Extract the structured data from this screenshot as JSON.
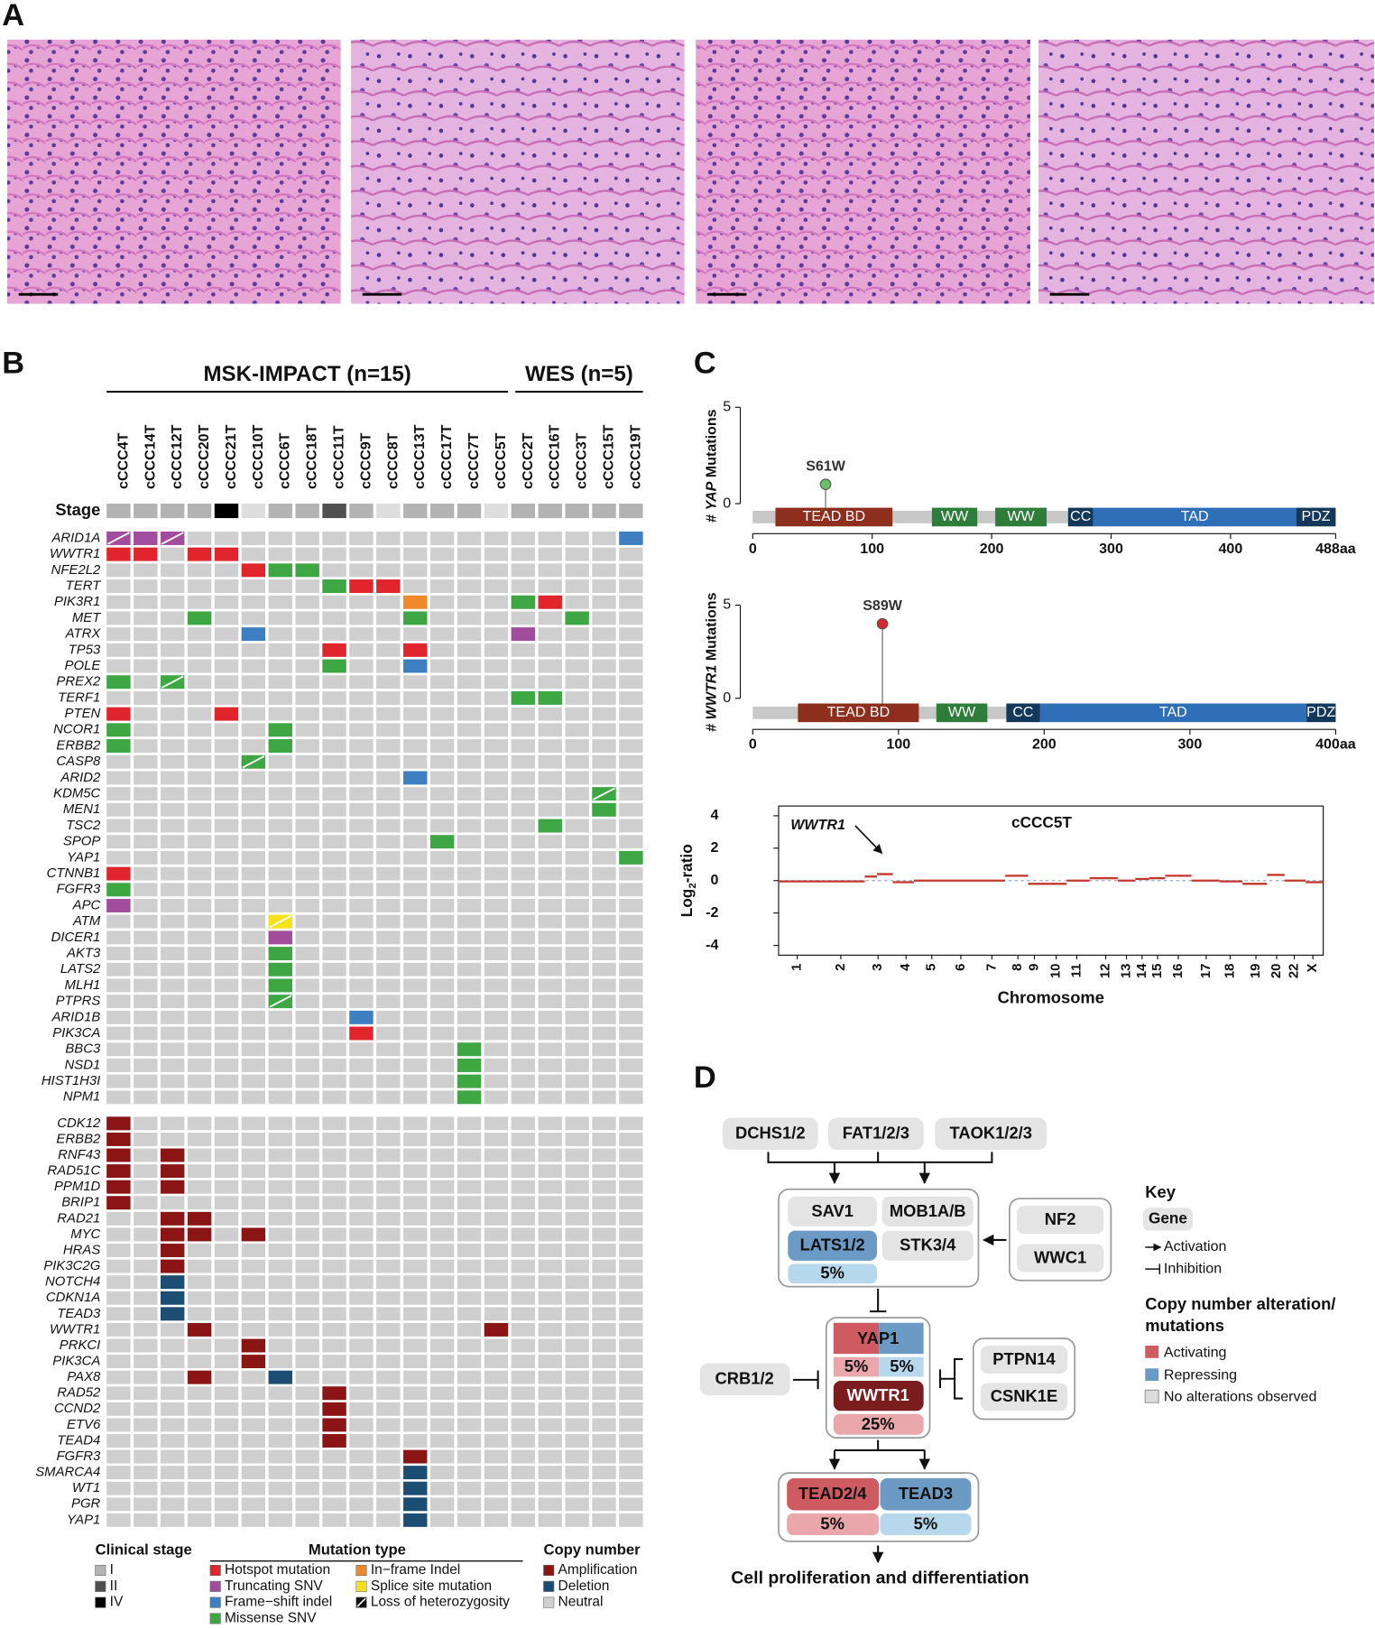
{
  "panel_a": {
    "label": "A"
  },
  "panel_b": {
    "label": "B",
    "groups": [
      "MSK-IMPACT (n=15)",
      "WES (n=5)"
    ],
    "samples": [
      "cCCC4T",
      "cCCC14T",
      "cCCC12T",
      "cCCC20T",
      "cCCC21T",
      "cCCC10T",
      "cCCC6T",
      "cCCC18T",
      "cCCC11T",
      "cCCC9T",
      "cCCC8T",
      "cCCC13T",
      "cCCC17T",
      "cCCC7T",
      "cCCC5T",
      "cCCC2T",
      "cCCC16T",
      "cCCC3T",
      "cCCC15T",
      "cCCC19T"
    ],
    "stage_label": "Stage",
    "stages": [
      "I",
      "I",
      "I",
      "I",
      "IV",
      null,
      "I",
      "I",
      "II",
      "I",
      null,
      "I",
      "I",
      "I",
      null,
      "I",
      "I",
      "I",
      "I",
      "I"
    ],
    "stage_legend": {
      "title": "Clinical stage",
      "items": [
        {
          "label": "I",
          "color": "#b3b3b3"
        },
        {
          "label": "II",
          "color": "#505050"
        },
        {
          "label": "IV",
          "color": "#000000"
        }
      ]
    },
    "mutation_legend": {
      "title": "Mutation type",
      "items": [
        {
          "label": "Hotspot mutation",
          "color": "#e0262c"
        },
        {
          "label": "Truncating SNV",
          "color": "#a24c9e"
        },
        {
          "label": "Frame−shift indel",
          "color": "#3d7fc1"
        },
        {
          "label": "Missense SNV",
          "color": "#3ea743"
        },
        {
          "label": "In−frame Indel",
          "color": "#f0892a"
        },
        {
          "label": "Splice site mutation",
          "color": "#f3e21c"
        },
        {
          "label": "Loss of heterozygosity",
          "color": "#111111",
          "style": "diagonal"
        }
      ]
    },
    "copy_number_legend": {
      "title": "Copy number",
      "items": [
        {
          "label": "Amplification",
          "color": "#8b1515"
        },
        {
          "label": "Deletion",
          "color": "#1c4e74"
        },
        {
          "label": "Neutral",
          "color": "#cfcfcf"
        }
      ]
    },
    "mutations": [
      {
        "gene": "ARID1A",
        "hits": {
          "cCCC4T": [
            "Truncating SNV",
            "Loss of heterozygosity"
          ],
          "cCCC14T": [
            "Truncating SNV"
          ],
          "cCCC12T": [
            "Truncating SNV",
            "Loss of heterozygosity"
          ],
          "cCCC19T": [
            "Frame−shift indel"
          ]
        }
      },
      {
        "gene": "WWTR1",
        "hits": {
          "cCCC4T": [
            "Hotspot mutation"
          ],
          "cCCC14T": [
            "Hotspot mutation"
          ],
          "cCCC20T": [
            "Hotspot mutation"
          ],
          "cCCC21T": [
            "Hotspot mutation"
          ]
        }
      },
      {
        "gene": "NFE2L2",
        "hits": {
          "cCCC10T": [
            "Hotspot mutation"
          ],
          "cCCC6T": [
            "Missense SNV"
          ],
          "cCCC18T": [
            "Missense SNV"
          ]
        }
      },
      {
        "gene": "TERT",
        "hits": {
          "cCCC11T": [
            "Missense SNV"
          ],
          "cCCC9T": [
            "Hotspot mutation"
          ],
          "cCCC8T": [
            "Hotspot mutation"
          ]
        }
      },
      {
        "gene": "PIK3R1",
        "hits": {
          "cCCC13T": [
            "In−frame Indel"
          ],
          "cCCC2T": [
            "Missense SNV"
          ],
          "cCCC16T": [
            "Hotspot mutation"
          ]
        }
      },
      {
        "gene": "MET",
        "hits": {
          "cCCC20T": [
            "Missense SNV"
          ],
          "cCCC13T": [
            "Missense SNV"
          ],
          "cCCC3T": [
            "Missense SNV"
          ]
        }
      },
      {
        "gene": "ATRX",
        "hits": {
          "cCCC10T": [
            "Frame−shift indel"
          ],
          "cCCC2T": [
            "Truncating SNV"
          ]
        }
      },
      {
        "gene": "TP53",
        "hits": {
          "cCCC11T": [
            "Hotspot mutation"
          ],
          "cCCC13T": [
            "Hotspot mutation"
          ]
        }
      },
      {
        "gene": "POLE",
        "hits": {
          "cCCC11T": [
            "Missense SNV"
          ],
          "cCCC13T": [
            "Frame−shift indel"
          ]
        }
      },
      {
        "gene": "PREX2",
        "hits": {
          "cCCC4T": [
            "Missense SNV"
          ],
          "cCCC12T": [
            "Missense SNV",
            "Loss of heterozygosity"
          ]
        }
      },
      {
        "gene": "TERF1",
        "hits": {
          "cCCC2T": [
            "Missense SNV"
          ],
          "cCCC16T": [
            "Missense SNV"
          ]
        }
      },
      {
        "gene": "PTEN",
        "hits": {
          "cCCC4T": [
            "Hotspot mutation"
          ],
          "cCCC21T": [
            "Hotspot mutation"
          ]
        }
      },
      {
        "gene": "NCOR1",
        "hits": {
          "cCCC4T": [
            "Missense SNV"
          ],
          "cCCC6T": [
            "Missense SNV"
          ]
        }
      },
      {
        "gene": "ERBB2",
        "hits": {
          "cCCC4T": [
            "Missense SNV"
          ],
          "cCCC6T": [
            "Missense SNV"
          ]
        }
      },
      {
        "gene": "CASP8",
        "hits": {
          "cCCC10T": [
            "Missense SNV",
            "Loss of heterozygosity"
          ]
        }
      },
      {
        "gene": "ARID2",
        "hits": {
          "cCCC13T": [
            "Frame−shift indel"
          ]
        }
      },
      {
        "gene": "KDM5C",
        "hits": {
          "cCCC15T": [
            "Missense SNV",
            "Loss of heterozygosity"
          ]
        }
      },
      {
        "gene": "MEN1",
        "hits": {
          "cCCC15T": [
            "Missense SNV"
          ]
        }
      },
      {
        "gene": "TSC2",
        "hits": {
          "cCCC16T": [
            "Missense SNV"
          ]
        }
      },
      {
        "gene": "SPOP",
        "hits": {
          "cCCC17T": [
            "Missense SNV"
          ]
        }
      },
      {
        "gene": "YAP1",
        "hits": {
          "cCCC19T": [
            "Missense SNV"
          ]
        }
      },
      {
        "gene": "CTNNB1",
        "hits": {
          "cCCC4T": [
            "Hotspot mutation"
          ]
        }
      },
      {
        "gene": "FGFR3",
        "hits": {
          "cCCC4T": [
            "Missense SNV"
          ]
        }
      },
      {
        "gene": "APC",
        "hits": {
          "cCCC4T": [
            "Truncating SNV"
          ]
        }
      },
      {
        "gene": "ATM",
        "hits": {
          "cCCC6T": [
            "Splice site mutation",
            "Loss of heterozygosity"
          ]
        }
      },
      {
        "gene": "DICER1",
        "hits": {
          "cCCC6T": [
            "Truncating SNV"
          ]
        }
      },
      {
        "gene": "AKT3",
        "hits": {
          "cCCC6T": [
            "Missense SNV"
          ]
        }
      },
      {
        "gene": "LATS2",
        "hits": {
          "cCCC6T": [
            "Missense SNV"
          ]
        }
      },
      {
        "gene": "MLH1",
        "hits": {
          "cCCC6T": [
            "Missense SNV"
          ]
        }
      },
      {
        "gene": "PTPRS",
        "hits": {
          "cCCC6T": [
            "Missense SNV",
            "Loss of heterozygosity"
          ]
        }
      },
      {
        "gene": "ARID1B",
        "hits": {
          "cCCC9T": [
            "Frame−shift indel"
          ]
        }
      },
      {
        "gene": "PIK3CA",
        "hits": {
          "cCCC9T": [
            "Hotspot mutation"
          ]
        }
      },
      {
        "gene": "BBC3",
        "hits": {
          "cCCC7T": [
            "Missense SNV"
          ]
        }
      },
      {
        "gene": "NSD1",
        "hits": {
          "cCCC7T": [
            "Missense SNV"
          ]
        }
      },
      {
        "gene": "HIST1H3I",
        "hits": {
          "cCCC7T": [
            "Missense SNV"
          ]
        }
      },
      {
        "gene": "NPM1",
        "hits": {
          "cCCC7T": [
            "Missense SNV"
          ]
        }
      }
    ],
    "copy_number": [
      {
        "gene": "CDK12",
        "hits": {
          "cCCC4T": "Amplification"
        }
      },
      {
        "gene": "ERBB2",
        "hits": {
          "cCCC4T": "Amplification"
        }
      },
      {
        "gene": "RNF43",
        "hits": {
          "cCCC4T": "Amplification",
          "cCCC12T": "Amplification"
        }
      },
      {
        "gene": "RAD51C",
        "hits": {
          "cCCC4T": "Amplification",
          "cCCC12T": "Amplification"
        }
      },
      {
        "gene": "PPM1D",
        "hits": {
          "cCCC4T": "Amplification",
          "cCCC12T": "Amplification"
        }
      },
      {
        "gene": "BRIP1",
        "hits": {
          "cCCC4T": "Amplification"
        }
      },
      {
        "gene": "RAD21",
        "hits": {
          "cCCC12T": "Amplification",
          "cCCC20T": "Amplification"
        }
      },
      {
        "gene": "MYC",
        "hits": {
          "cCCC12T": "Amplification",
          "cCCC20T": "Amplification",
          "cCCC10T": "Amplification"
        }
      },
      {
        "gene": "HRAS",
        "hits": {
          "cCCC12T": "Amplification"
        }
      },
      {
        "gene": "PIK3C2G",
        "hits": {
          "cCCC12T": "Amplification"
        }
      },
      {
        "gene": "NOTCH4",
        "hits": {
          "cCCC12T": "Deletion"
        }
      },
      {
        "gene": "CDKN1A",
        "hits": {
          "cCCC12T": "Deletion"
        }
      },
      {
        "gene": "TEAD3",
        "hits": {
          "cCCC12T": "Deletion"
        }
      },
      {
        "gene": "WWTR1",
        "hits": {
          "cCCC20T": "Amplification",
          "cCCC5T": "Amplification"
        }
      },
      {
        "gene": "PRKCI",
        "hits": {
          "cCCC10T": "Amplification"
        }
      },
      {
        "gene": "PIK3CA",
        "hits": {
          "cCCC10T": "Amplification"
        }
      },
      {
        "gene": "PAX8",
        "hits": {
          "cCCC20T": "Amplification",
          "cCCC6T": "Deletion"
        }
      },
      {
        "gene": "RAD52",
        "hits": {
          "cCCC11T": "Amplification"
        }
      },
      {
        "gene": "CCND2",
        "hits": {
          "cCCC11T": "Amplification"
        }
      },
      {
        "gene": "ETV6",
        "hits": {
          "cCCC11T": "Amplification"
        }
      },
      {
        "gene": "TEAD4",
        "hits": {
          "cCCC11T": "Amplification"
        }
      },
      {
        "gene": "FGFR3",
        "hits": {
          "cCCC13T": "Amplification"
        }
      },
      {
        "gene": "SMARCA4",
        "hits": {
          "cCCC13T": "Deletion"
        }
      },
      {
        "gene": "WT1",
        "hits": {
          "cCCC13T": "Deletion"
        }
      },
      {
        "gene": "PGR",
        "hits": {
          "cCCC13T": "Deletion"
        }
      },
      {
        "gene": "YAP1",
        "hits": {
          "cCCC13T": "Deletion"
        }
      }
    ]
  },
  "panel_c": {
    "label": "C",
    "lollipops": [
      {
        "y_label": [
          "# ",
          "YAP",
          " Mutations"
        ],
        "ylim": [
          0,
          5
        ],
        "yticks": [
          0,
          5
        ],
        "xlim": [
          0,
          488
        ],
        "xticks": [
          0,
          100,
          200,
          300,
          400,
          {
            "value": 488,
            "label": "488aa"
          }
        ],
        "domains": [
          {
            "name": "TEAD BD",
            "start": 19,
            "end": 117,
            "color": "#8d2f1c"
          },
          {
            "name": "WW",
            "start": 150,
            "end": 188,
            "color": "#2e7d3a"
          },
          {
            "name": "WW",
            "start": 203,
            "end": 246,
            "color": "#2e7d3a"
          },
          {
            "name": "CC",
            "start": 264,
            "end": 285,
            "color": "#14385a"
          },
          {
            "name": "TAD",
            "start": 285,
            "end": 455,
            "color": "#2e6fb8"
          },
          {
            "name": "PDZ",
            "start": 455,
            "end": 488,
            "color": "#14385a"
          }
        ],
        "mutations": [
          {
            "label": "S61W",
            "position": 61,
            "count": 1,
            "color": "#6cc06c"
          }
        ]
      },
      {
        "y_label": [
          "# ",
          "WWTR1",
          " Mutations"
        ],
        "ylim": [
          0,
          5
        ],
        "yticks": [
          0,
          5
        ],
        "xlim": [
          0,
          400
        ],
        "xticks": [
          0,
          100,
          200,
          300,
          {
            "value": 400,
            "label": "400aa"
          }
        ],
        "domains": [
          {
            "name": "TEAD BD",
            "start": 31,
            "end": 114,
            "color": "#8d2f1c"
          },
          {
            "name": "WW",
            "start": 126,
            "end": 161,
            "color": "#2e7d3a"
          },
          {
            "name": "CC",
            "start": 174,
            "end": 197,
            "color": "#14385a"
          },
          {
            "name": "TAD",
            "start": 197,
            "end": 380,
            "color": "#2e6fb8"
          },
          {
            "name": "PDZ",
            "start": 380,
            "end": 400,
            "color": "#14385a"
          }
        ],
        "mutations": [
          {
            "label": "S89W",
            "position": 89,
            "count": 4,
            "color": "#d8282d"
          }
        ]
      }
    ],
    "copy_number_plot": {
      "title": "cCCC5T",
      "y_label": [
        "Log",
        "2",
        "-ratio"
      ],
      "x_label": "Chromosome",
      "ylim": [
        -4.6,
        4.6
      ],
      "yticks": [
        4,
        2,
        0,
        -2,
        -4
      ],
      "xlim": [
        0,
        3100
      ],
      "xticks": [
        {
          "value": 106,
          "label": "1"
        },
        {
          "value": 354,
          "label": "2"
        },
        {
          "value": 566,
          "label": "3"
        },
        {
          "value": 725,
          "label": "4"
        },
        {
          "value": 872,
          "label": "5"
        },
        {
          "value": 1037,
          "label": "6"
        },
        {
          "value": 1214,
          "label": "7"
        },
        {
          "value": 1362,
          "label": "8"
        },
        {
          "value": 1456,
          "label": "9"
        },
        {
          "value": 1580,
          "label": "10"
        },
        {
          "value": 1697,
          "label": "11"
        },
        {
          "value": 1862,
          "label": "12"
        },
        {
          "value": 1980,
          "label": "13"
        },
        {
          "value": 2069,
          "label": "14"
        },
        {
          "value": 2157,
          "label": "15"
        },
        {
          "value": 2275,
          "label": "16"
        },
        {
          "value": 2434,
          "label": "17"
        },
        {
          "value": 2570,
          "label": "18"
        },
        {
          "value": 2717,
          "label": "19"
        },
        {
          "value": 2835,
          "label": "20"
        },
        {
          "value": 2935,
          "label": "22"
        },
        {
          "value": 3041,
          "label": "X"
        }
      ],
      "segments": [
        {
          "start": 0,
          "end": 250,
          "value": -0.05
        },
        {
          "start": 250,
          "end": 490,
          "value": -0.05
        },
        {
          "start": 490,
          "end": 560,
          "value": 0.25
        },
        {
          "start": 560,
          "end": 650,
          "value": 0.4
        },
        {
          "start": 650,
          "end": 770,
          "value": -0.1
        },
        {
          "start": 770,
          "end": 950,
          "value": 0
        },
        {
          "start": 950,
          "end": 1120,
          "value": 0
        },
        {
          "start": 1120,
          "end": 1290,
          "value": 0
        },
        {
          "start": 1290,
          "end": 1420,
          "value": 0.3
        },
        {
          "start": 1420,
          "end": 1510,
          "value": -0.2
        },
        {
          "start": 1510,
          "end": 1640,
          "value": -0.2
        },
        {
          "start": 1640,
          "end": 1770,
          "value": 0
        },
        {
          "start": 1770,
          "end": 1930,
          "value": 0.15
        },
        {
          "start": 1930,
          "end": 2030,
          "value": 0
        },
        {
          "start": 2030,
          "end": 2110,
          "value": 0.1
        },
        {
          "start": 2110,
          "end": 2200,
          "value": 0.15
        },
        {
          "start": 2200,
          "end": 2350,
          "value": 0.3
        },
        {
          "start": 2350,
          "end": 2510,
          "value": 0
        },
        {
          "start": 2510,
          "end": 2640,
          "value": -0.05
        },
        {
          "start": 2640,
          "end": 2780,
          "value": -0.2
        },
        {
          "start": 2780,
          "end": 2880,
          "value": 0.35
        },
        {
          "start": 2880,
          "end": 3000,
          "value": 0
        },
        {
          "start": 3000,
          "end": 3100,
          "value": -0.1
        }
      ],
      "annotation": {
        "label": "WWTR1",
        "x": 600,
        "y": 1.5
      }
    }
  },
  "panel_d": {
    "label": "D",
    "upstream": [
      "DCHS1/2",
      "FAT1/2/3",
      "TAOK1/2/3"
    ],
    "core": {
      "genes": [
        "SAV1",
        "MOB1A/B",
        "LATS1/2",
        "STK3/4"
      ],
      "frequency": "5%"
    },
    "regulators": [
      "NF2",
      "WWC1"
    ],
    "effectors": {
      "genes": [
        "YAP1",
        "WWTR1"
      ],
      "frequencies": [
        "5%",
        "5%",
        "25%"
      ]
    },
    "inhibitor_left": "CRB1/2",
    "inhibitors_right": [
      "PTPN14",
      "CSNK1E"
    ],
    "tead": {
      "genes": [
        "TEAD2/4",
        "TEAD3"
      ],
      "frequencies": [
        "5%",
        "5%"
      ]
    },
    "outcome": "Cell proliferation and differentiation",
    "key": {
      "title": "Key",
      "gene": "Gene",
      "activation": "Activation",
      "inhibition": "Inhibition",
      "cna_title": [
        "Copy number alteration/",
        "mutations"
      ],
      "items": [
        "Activating",
        "Repressing",
        "No alterations observed"
      ]
    }
  }
}
